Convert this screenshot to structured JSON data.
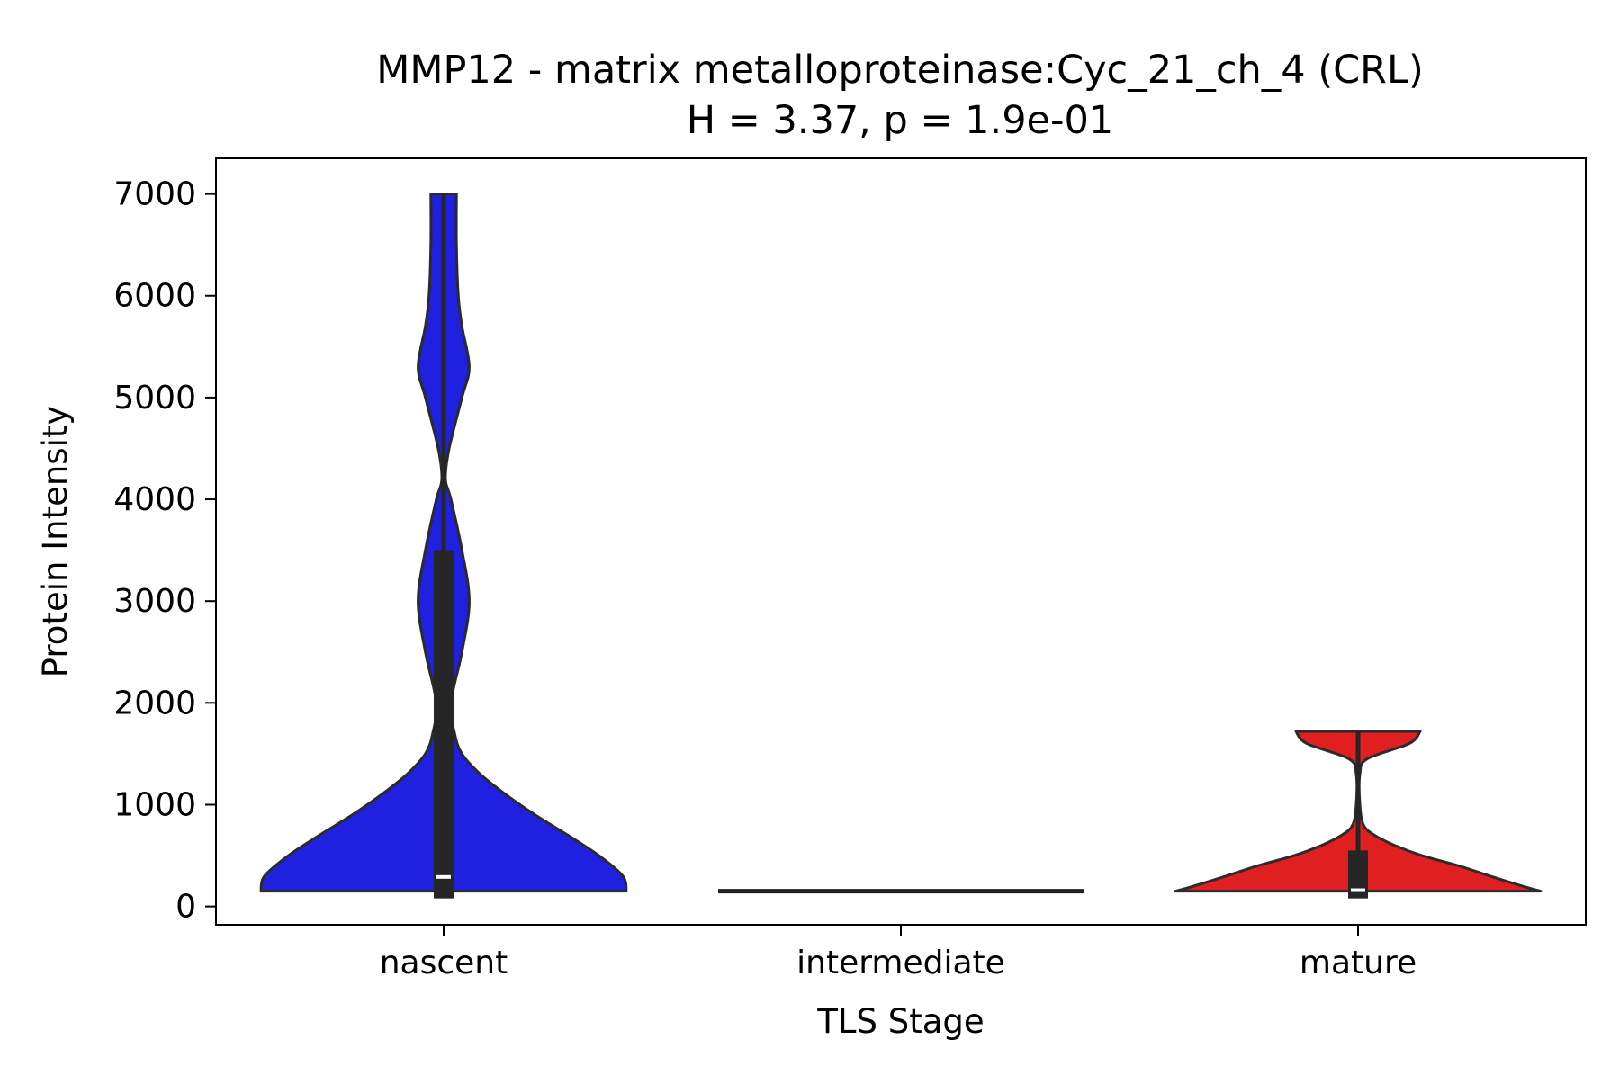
{
  "chart_data": {
    "type": "violin",
    "title": "MMP12 - matrix metalloproteinase:Cyc_21_ch_4 (CRL)",
    "subtitle": "H = 3.37, p = 1.9e-01",
    "xlabel": "TLS Stage",
    "ylabel": "Protein Intensity",
    "categories": [
      "nascent",
      "intermediate",
      "mature"
    ],
    "ylim": [
      -180,
      7350
    ],
    "yticks": [
      0,
      1000,
      2000,
      3000,
      4000,
      5000,
      6000,
      7000
    ],
    "grid": false,
    "series": [
      {
        "category": "nascent",
        "color": "#2020e0",
        "min": 150,
        "q1": 150,
        "median": 290,
        "q3": 3500,
        "max": 7000,
        "whisker_low": 150,
        "whisker_high": 7000,
        "density_profile": [
          [
            150,
            1.0
          ],
          [
            300,
            0.98
          ],
          [
            500,
            0.85
          ],
          [
            700,
            0.68
          ],
          [
            900,
            0.5
          ],
          [
            1100,
            0.34
          ],
          [
            1300,
            0.2
          ],
          [
            1500,
            0.1
          ],
          [
            1700,
            0.06
          ],
          [
            2000,
            0.04
          ],
          [
            2500,
            0.1
          ],
          [
            3000,
            0.14
          ],
          [
            3500,
            0.1
          ],
          [
            4000,
            0.04
          ],
          [
            4200,
            0.0
          ],
          [
            4500,
            0.03
          ],
          [
            5000,
            0.1
          ],
          [
            5300,
            0.14
          ],
          [
            5700,
            0.1
          ],
          [
            6000,
            0.08
          ],
          [
            6500,
            0.07
          ],
          [
            7000,
            0.07
          ]
        ]
      },
      {
        "category": "intermediate",
        "color": "#222222",
        "min": 150,
        "q1": 150,
        "median": 150,
        "q3": 150,
        "max": 150,
        "whisker_low": 150,
        "whisker_high": 150,
        "density_profile": [
          [
            150,
            1.0
          ]
        ]
      },
      {
        "category": "mature",
        "color": "#e02020",
        "min": 150,
        "q1": 150,
        "median": 160,
        "q3": 550,
        "max": 1720,
        "whisker_low": 150,
        "whisker_high": 1720,
        "density_profile": [
          [
            150,
            1.0
          ],
          [
            200,
            0.9
          ],
          [
            300,
            0.72
          ],
          [
            400,
            0.55
          ],
          [
            500,
            0.35
          ],
          [
            600,
            0.2
          ],
          [
            700,
            0.09
          ],
          [
            800,
            0.03
          ],
          [
            1000,
            0.01
          ],
          [
            1300,
            0.01
          ],
          [
            1450,
            0.05
          ],
          [
            1600,
            0.28
          ],
          [
            1720,
            0.34
          ]
        ]
      }
    ]
  }
}
